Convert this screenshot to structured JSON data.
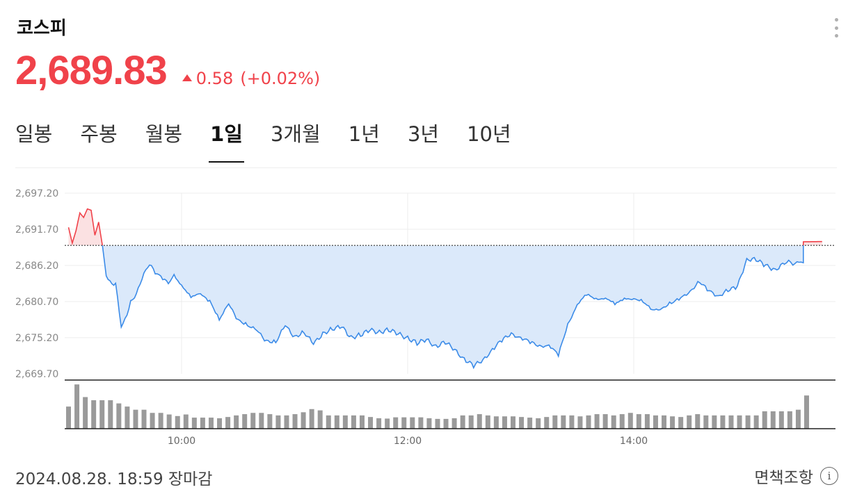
{
  "index_name": "코스피",
  "price": "2,689.83",
  "change": "0.58",
  "change_pct": "(+0.02%)",
  "colors": {
    "up": "#f0424a",
    "down": "#3b8be8"
  },
  "tabs": [
    {
      "label": "일봉",
      "active": false
    },
    {
      "label": "주봉",
      "active": false
    },
    {
      "label": "월봉",
      "active": false
    },
    {
      "label": "1일",
      "active": true
    },
    {
      "label": "3개월",
      "active": false
    },
    {
      "label": "1년",
      "active": false
    },
    {
      "label": "3년",
      "active": false
    },
    {
      "label": "10년",
      "active": false
    }
  ],
  "footer": {
    "timestamp": "2024.08.28. 18:59 장마감",
    "disclaimer": "면책조항"
  },
  "chart_data": {
    "type": "line",
    "title": "",
    "xlabel": "",
    "ylabel": "",
    "x_range": [
      "09:00",
      "15:30"
    ],
    "ylim": [
      2669.7,
      2697.2
    ],
    "y_ticks": [
      "2,697.20",
      "2,691.70",
      "2,686.20",
      "2,680.70",
      "2,675.20",
      "2,669.70"
    ],
    "x_ticks": [
      "10:00",
      "12:00",
      "14:00"
    ],
    "previous_close": 2689.25,
    "grid": true,
    "series": [
      {
        "points": [
          [
            "09:00",
            2692.0
          ],
          [
            "09:02",
            2689.6
          ],
          [
            "09:04",
            2691.5
          ],
          [
            "09:06",
            2694.2
          ],
          [
            "09:08",
            2693.5
          ],
          [
            "09:10",
            2694.8
          ],
          [
            "09:12",
            2694.6
          ],
          [
            "09:14",
            2690.8
          ],
          [
            "09:16",
            2692.8
          ],
          [
            "09:18",
            2689.2
          ],
          [
            "09:20",
            2684.6
          ],
          [
            "09:22",
            2683.5
          ],
          [
            "09:25",
            2683.3
          ],
          [
            "09:28",
            2676.8
          ],
          [
            "09:30",
            2678.0
          ],
          [
            "09:33",
            2680.5
          ],
          [
            "09:36",
            2681.8
          ],
          [
            "09:40",
            2684.8
          ],
          [
            "09:43",
            2686.4
          ],
          [
            "09:46",
            2685.2
          ],
          [
            "09:50",
            2684.3
          ],
          [
            "09:53",
            2683.6
          ],
          [
            "09:56",
            2684.7
          ],
          [
            "10:00",
            2683.2
          ],
          [
            "10:05",
            2681.5
          ],
          [
            "10:10",
            2681.7
          ],
          [
            "10:15",
            2680.9
          ],
          [
            "10:20",
            2678.0
          ],
          [
            "10:25",
            2680.2
          ],
          [
            "10:30",
            2678.0
          ],
          [
            "10:35",
            2677.1
          ],
          [
            "10:40",
            2676.2
          ],
          [
            "10:45",
            2674.8
          ],
          [
            "10:50",
            2674.5
          ],
          [
            "10:55",
            2677.0
          ],
          [
            "11:00",
            2675.4
          ],
          [
            "11:05",
            2676.0
          ],
          [
            "11:10",
            2674.2
          ],
          [
            "11:15",
            2675.9
          ],
          [
            "11:20",
            2676.5
          ],
          [
            "11:25",
            2676.8
          ],
          [
            "11:30",
            2675.3
          ],
          [
            "11:35",
            2675.6
          ],
          [
            "11:40",
            2676.3
          ],
          [
            "11:45",
            2676.1
          ],
          [
            "11:50",
            2676.4
          ],
          [
            "11:55",
            2675.7
          ],
          [
            "12:00",
            2675.2
          ],
          [
            "12:05",
            2674.4
          ],
          [
            "12:10",
            2674.8
          ],
          [
            "12:15",
            2673.9
          ],
          [
            "12:20",
            2674.6
          ],
          [
            "12:25",
            2673.2
          ],
          [
            "12:30",
            2672.0
          ],
          [
            "12:35",
            2671.0
          ],
          [
            "12:40",
            2671.6
          ],
          [
            "12:45",
            2673.5
          ],
          [
            "12:50",
            2674.9
          ],
          [
            "12:55",
            2675.6
          ],
          [
            "13:00",
            2675.3
          ],
          [
            "13:05",
            2674.6
          ],
          [
            "13:10",
            2673.7
          ],
          [
            "13:15",
            2674.2
          ],
          [
            "13:20",
            2672.6
          ],
          [
            "13:25",
            2677.0
          ],
          [
            "13:30",
            2680.4
          ],
          [
            "13:35",
            2681.8
          ],
          [
            "13:40",
            2680.9
          ],
          [
            "13:45",
            2681.4
          ],
          [
            "13:50",
            2680.3
          ],
          [
            "13:55",
            2681.0
          ],
          [
            "14:00",
            2681.3
          ],
          [
            "14:05",
            2680.6
          ],
          [
            "14:10",
            2679.3
          ],
          [
            "14:15",
            2679.8
          ],
          [
            "14:20",
            2680.4
          ],
          [
            "14:25",
            2681.2
          ],
          [
            "14:30",
            2682.4
          ],
          [
            "14:35",
            2683.6
          ],
          [
            "14:40",
            2682.3
          ],
          [
            "14:45",
            2681.6
          ],
          [
            "14:50",
            2682.3
          ],
          [
            "14:55",
            2683.0
          ],
          [
            "15:00",
            2687.2
          ],
          [
            "15:05",
            2687.0
          ],
          [
            "15:10",
            2686.2
          ],
          [
            "15:15",
            2685.6
          ],
          [
            "15:20",
            2686.4
          ],
          [
            "15:20",
            2686.6
          ],
          [
            "15:30",
            2686.6
          ],
          [
            "15:30",
            2689.8
          ],
          [
            "15:40",
            2689.83
          ]
        ]
      }
    ],
    "volume": [
      7,
      14,
      10,
      9,
      9,
      9,
      8,
      7,
      6,
      6,
      5,
      5,
      4.5,
      4,
      4.5,
      3.5,
      3.5,
      3.5,
      3.3,
      3.7,
      4.2,
      4.6,
      5,
      5,
      4.6,
      4.2,
      4.2,
      4.6,
      5.2,
      6.2,
      5.8,
      4.2,
      4.2,
      4.2,
      4.2,
      4.2,
      3.7,
      3.3,
      3.2,
      3.6,
      3.6,
      3.6,
      3.6,
      3.3,
      3.1,
      3.1,
      3.3,
      4.2,
      4.2,
      4.6,
      4.2,
      3.9,
      3.9,
      3.9,
      3.7,
      3.5,
      3.3,
      3.7,
      4.2,
      4.2,
      4.2,
      3.9,
      4.2,
      4.6,
      4.6,
      4.2,
      4.6,
      5,
      4.6,
      4.6,
      4.2,
      4.2,
      3.9,
      3.7,
      4.2,
      4.6,
      4.2,
      4.2,
      4.2,
      4.2,
      4.2,
      4.2,
      4.2,
      5.5,
      5.5,
      5.5,
      5.5,
      6,
      10.5
    ]
  }
}
